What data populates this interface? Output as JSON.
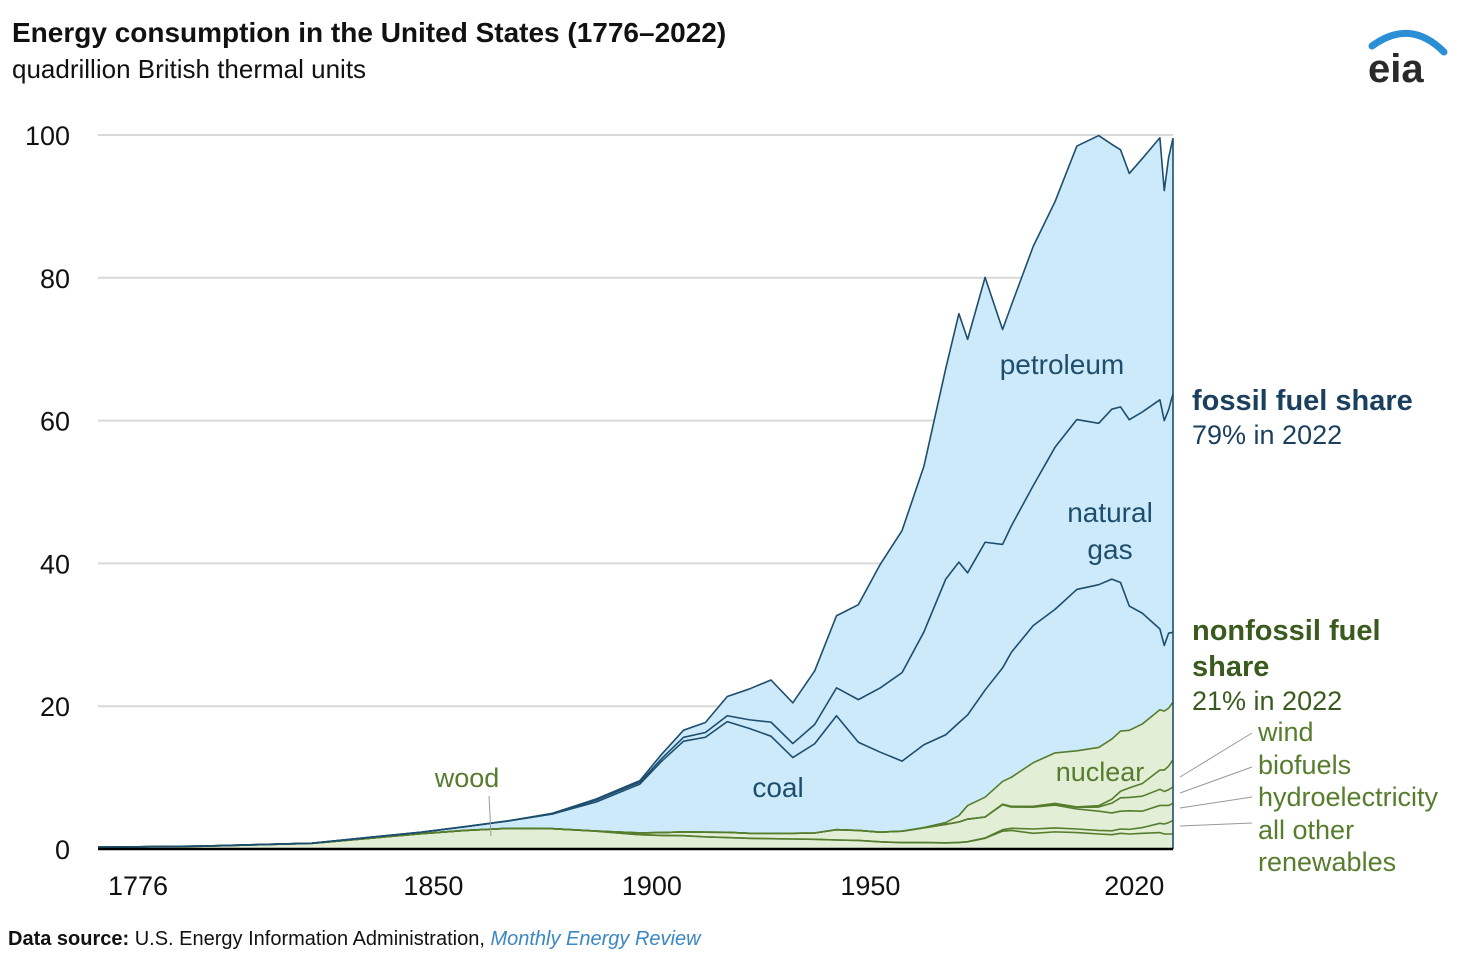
{
  "header": {
    "title": "Energy consumption in the United States (1776–2022)",
    "subtitle": "quadrillion British thermal units",
    "logo_text": "eia"
  },
  "footer": {
    "label": "Data source:",
    "text": " U.S. Energy Information Administration, ",
    "link": "Monthly Energy Review"
  },
  "annotations": {
    "fossil_title": "fossil fuel share",
    "fossil_value": "79% in 2022",
    "nonfossil_title_1": "nonfossil fuel",
    "nonfossil_title_2": "share",
    "nonfossil_value": "21% in 2022",
    "petroleum": "petroleum",
    "natural_gas_1": "natural",
    "natural_gas_2": "gas",
    "coal": "coal",
    "nuclear": "nuclear",
    "wood": "wood",
    "wind": "wind",
    "biofuels": "biofuels",
    "hydroelectricity": "hydroelectricity",
    "other_1": "all other",
    "other_2": "renewables"
  },
  "colors": {
    "fossil_fill": "#cdeafb",
    "fossil_line": "#1d4e6e",
    "nonfossil_fill": "#e2eed5",
    "nonfossil_line": "#567d2e",
    "fossil_label": "#1b3f5e",
    "nonfossil_label": "#3a5a1e",
    "link": "#3a87c4"
  },
  "chart_data": {
    "type": "area",
    "stacked": true,
    "title": "Energy consumption in the United States (1776–2022)",
    "ylabel": "quadrillion British thermal units",
    "xlim": [
      1776,
      2022
    ],
    "ylim": [
      0,
      100
    ],
    "yticks": [
      0,
      20,
      40,
      60,
      80,
      100
    ],
    "xticks": [
      1776,
      1850,
      1900,
      1950,
      2020
    ],
    "grid": true,
    "x": [
      1776,
      1800,
      1825,
      1850,
      1860,
      1870,
      1880,
      1890,
      1900,
      1905,
      1910,
      1915,
      1920,
      1925,
      1930,
      1935,
      1940,
      1945,
      1950,
      1955,
      1960,
      1965,
      1970,
      1973,
      1975,
      1979,
      1983,
      1985,
      1990,
      1995,
      2000,
      2005,
      2008,
      2010,
      2012,
      2015,
      2019,
      2020,
      2021,
      2022
    ],
    "series": [
      {
        "name": "wood",
        "group": "nonfossil",
        "values": [
          0.25,
          0.4,
          0.8,
          2.14,
          2.6,
          2.9,
          2.85,
          2.5,
          2.0,
          1.9,
          1.86,
          1.7,
          1.6,
          1.5,
          1.45,
          1.4,
          1.36,
          1.26,
          1.2,
          1.0,
          0.9,
          0.9,
          0.85,
          0.9,
          1.0,
          1.5,
          2.5,
          2.6,
          2.2,
          2.4,
          2.3,
          2.1,
          2.0,
          2.2,
          2.1,
          2.2,
          2.3,
          2.1,
          2.1,
          2.1
        ]
      },
      {
        "name": "all other renewables",
        "group": "nonfossil",
        "values": [
          0,
          0,
          0,
          0,
          0,
          0,
          0,
          0,
          0,
          0,
          0,
          0,
          0,
          0,
          0,
          0,
          0,
          0,
          0,
          0,
          0,
          0,
          0.01,
          0.02,
          0.03,
          0.05,
          0.2,
          0.3,
          0.6,
          0.55,
          0.5,
          0.5,
          0.55,
          0.6,
          0.65,
          0.8,
          1.3,
          1.4,
          1.6,
          1.9
        ]
      },
      {
        "name": "hydroelectricity",
        "group": "nonfossil",
        "values": [
          0,
          0,
          0,
          0,
          0,
          0,
          0,
          0.02,
          0.25,
          0.4,
          0.54,
          0.65,
          0.74,
          0.7,
          0.75,
          0.8,
          0.88,
          1.44,
          1.4,
          1.36,
          1.6,
          2.06,
          2.6,
          2.86,
          3.15,
          2.93,
          3.5,
          2.97,
          3.05,
          3.2,
          2.8,
          2.7,
          2.5,
          2.5,
          2.6,
          2.3,
          2.5,
          2.6,
          2.4,
          2.4
        ]
      },
      {
        "name": "biofuels",
        "group": "nonfossil",
        "values": [
          0,
          0,
          0,
          0,
          0,
          0,
          0,
          0,
          0,
          0,
          0,
          0,
          0,
          0,
          0,
          0,
          0,
          0,
          0,
          0,
          0,
          0,
          0,
          0,
          0,
          0,
          0.06,
          0.09,
          0.1,
          0.2,
          0.23,
          0.58,
          1.37,
          1.87,
          1.87,
          2.1,
          2.26,
          1.96,
          2.2,
          2.3
        ]
      },
      {
        "name": "wind",
        "group": "nonfossil",
        "values": [
          0,
          0,
          0,
          0,
          0,
          0,
          0,
          0,
          0,
          0,
          0,
          0,
          0,
          0,
          0,
          0,
          0,
          0,
          0,
          0,
          0,
          0,
          0,
          0,
          0,
          0,
          0,
          0,
          0.03,
          0.03,
          0.06,
          0.18,
          0.55,
          0.92,
          1.34,
          1.78,
          2.7,
          3.0,
          3.3,
          3.8
        ]
      },
      {
        "name": "nuclear",
        "group": "nonfossil",
        "values": [
          0,
          0,
          0,
          0,
          0,
          0,
          0,
          0,
          0,
          0,
          0,
          0,
          0,
          0,
          0,
          0,
          0,
          0,
          0,
          0,
          0.006,
          0.04,
          0.24,
          0.9,
          1.9,
          2.78,
          3.2,
          4.08,
          6.1,
          7.08,
          7.86,
          8.16,
          8.43,
          8.43,
          8.06,
          8.34,
          8.45,
          8.25,
          8.13,
          8.05
        ]
      },
      {
        "name": "coal",
        "group": "fossil",
        "values": [
          0,
          0.01,
          0.02,
          0.22,
          0.52,
          1.05,
          2.05,
          4.06,
          6.84,
          10.0,
          12.7,
          13.3,
          15.5,
          14.7,
          13.6,
          10.6,
          12.5,
          15.97,
          12.35,
          11.2,
          9.8,
          11.6,
          12.3,
          13.0,
          12.7,
          15.0,
          15.9,
          17.5,
          19.2,
          20.1,
          22.6,
          22.8,
          22.4,
          20.8,
          17.4,
          15.5,
          11.3,
          9.2,
          10.5,
          9.8
        ]
      },
      {
        "name": "natural gas",
        "group": "fossil",
        "values": [
          0,
          0,
          0,
          0,
          0,
          0,
          0,
          0.26,
          0.25,
          0.37,
          0.54,
          0.67,
          0.82,
          1.2,
          1.97,
          1.97,
          2.7,
          3.9,
          5.97,
          9.0,
          12.4,
          15.8,
          21.8,
          22.5,
          19.9,
          20.7,
          17.3,
          17.7,
          19.6,
          22.7,
          23.8,
          22.6,
          23.8,
          24.6,
          26.1,
          28.2,
          32.1,
          31.5,
          31.3,
          33.4
        ]
      },
      {
        "name": "petroleum",
        "group": "fossil",
        "values": [
          0,
          0,
          0,
          0,
          0,
          0,
          0.1,
          0.16,
          0.23,
          0.61,
          1.0,
          1.4,
          2.7,
          4.3,
          5.9,
          5.7,
          7.5,
          10.1,
          13.3,
          17.3,
          19.9,
          23.2,
          29.5,
          34.8,
          32.7,
          37.1,
          30.1,
          30.9,
          33.5,
          34.4,
          38.3,
          40.3,
          37.1,
          36.0,
          34.5,
          35.5,
          36.7,
          32.2,
          35.3,
          35.8
        ]
      }
    ],
    "shares_2022": {
      "fossil": 79,
      "nonfossil": 21
    }
  }
}
